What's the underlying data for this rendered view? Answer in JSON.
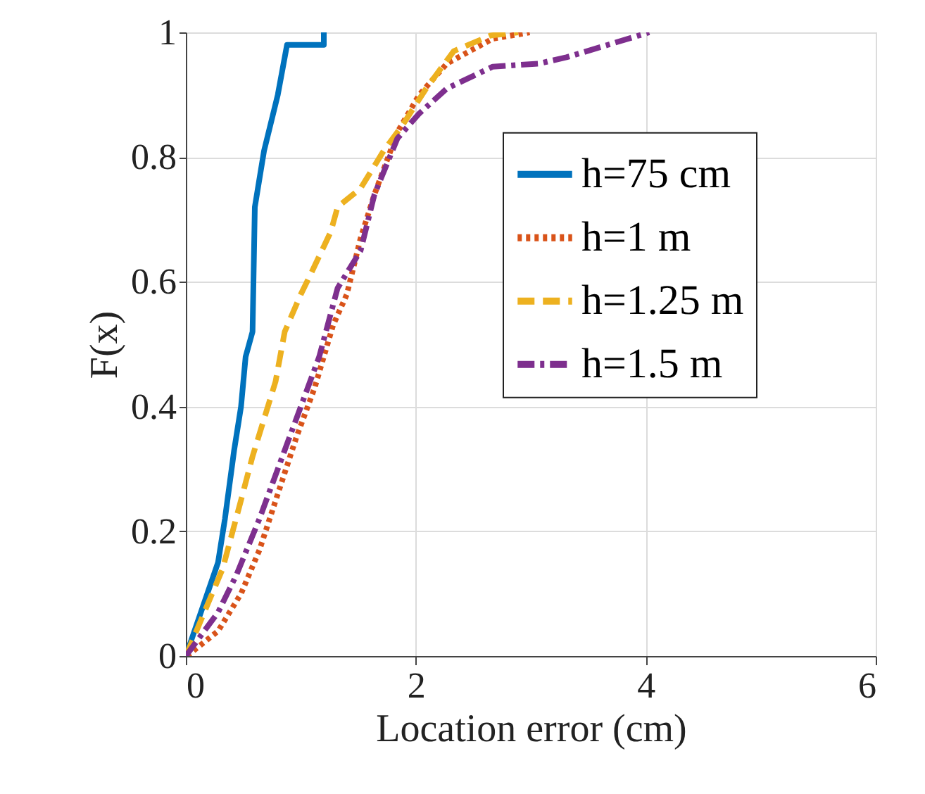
{
  "chart_data": {
    "type": "line",
    "xlabel": "Location error (cm)",
    "ylabel": "F(x)",
    "xlim": [
      0,
      6
    ],
    "xticks": [
      0,
      2,
      4,
      6
    ],
    "ylim": [
      0,
      1
    ],
    "yticks": [
      0,
      0.2,
      0.4,
      0.6,
      0.8,
      1
    ],
    "grid": true,
    "legend": "right",
    "marker": "none",
    "series": [
      {
        "name": "h=75 cm",
        "color": "#0072bd",
        "line_style": "solid",
        "x": [
          0,
          0.28,
          0.34,
          0.42,
          0.48,
          0.52,
          0.58,
          0.6,
          0.68,
          0.8,
          0.88,
          1.2,
          1.2
        ],
        "values": [
          0,
          0.15,
          0.22,
          0.33,
          0.4,
          0.48,
          0.52,
          0.72,
          0.81,
          0.9,
          0.98,
          0.98,
          1.0
        ]
      },
      {
        "name": "h=1 m",
        "color": "#d95319",
        "line_style": "dotted",
        "x": [
          0.01,
          0.28,
          0.48,
          0.64,
          0.8,
          0.96,
          1.12,
          1.28,
          1.4,
          1.52,
          1.64,
          1.84,
          2.03,
          2.27,
          2.67,
          2.99
        ],
        "values": [
          0,
          0.04,
          0.1,
          0.17,
          0.26,
          0.35,
          0.43,
          0.53,
          0.58,
          0.67,
          0.74,
          0.84,
          0.9,
          0.95,
          0.99,
          1.0
        ]
      },
      {
        "name": "h=1.25 m",
        "color": "#edb120",
        "line_style": "dashed",
        "x": [
          0,
          0.32,
          0.48,
          0.58,
          0.68,
          0.78,
          0.86,
          1.0,
          1.08,
          1.26,
          1.32,
          1.52,
          1.72,
          1.88,
          2.09,
          2.33,
          2.65,
          2.89
        ],
        "values": [
          0,
          0.14,
          0.25,
          0.32,
          0.38,
          0.44,
          0.52,
          0.58,
          0.61,
          0.68,
          0.72,
          0.75,
          0.81,
          0.85,
          0.91,
          0.97,
          0.995,
          1.0
        ]
      },
      {
        "name": "h=1.5 m",
        "color": "#7e2f8e",
        "line_style": "dashdot",
        "x": [
          0,
          0.28,
          0.44,
          0.64,
          0.84,
          1.0,
          1.16,
          1.32,
          1.52,
          1.64,
          1.84,
          2.03,
          2.27,
          2.67,
          3.07,
          3.31,
          3.67,
          4.03
        ],
        "values": [
          0,
          0.07,
          0.13,
          0.22,
          0.32,
          0.4,
          0.48,
          0.59,
          0.65,
          0.74,
          0.83,
          0.87,
          0.91,
          0.945,
          0.95,
          0.96,
          0.98,
          1.0
        ]
      }
    ]
  }
}
